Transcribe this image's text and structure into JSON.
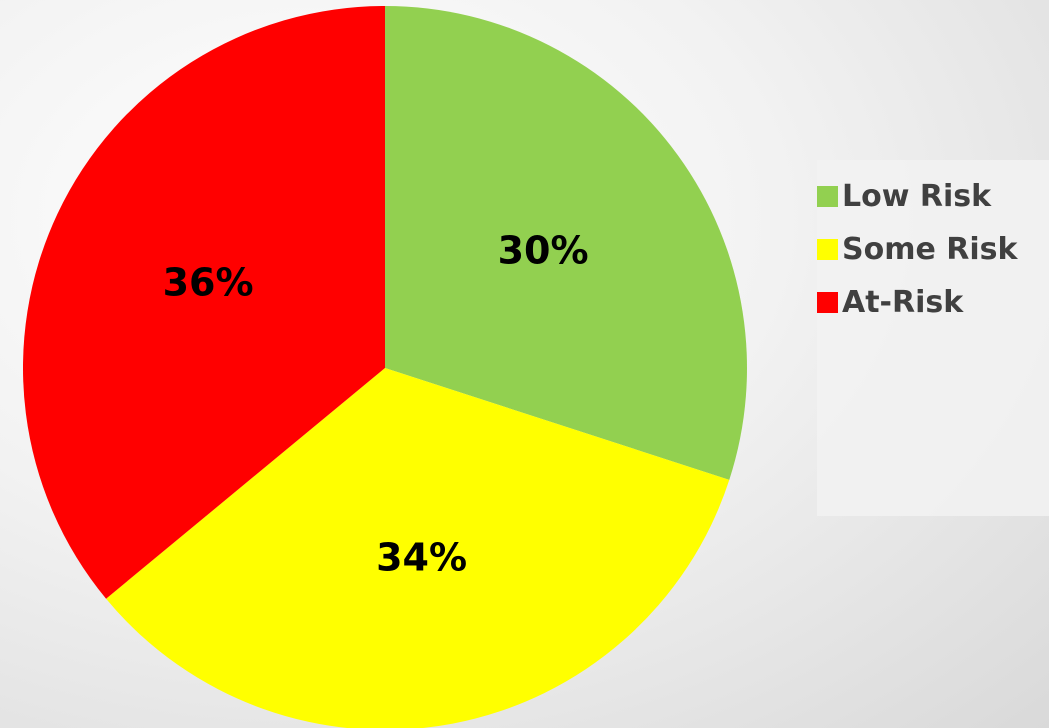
{
  "chart_data": {
    "type": "pie",
    "categories": [
      "Low Risk",
      "Some Risk",
      "At-Risk"
    ],
    "values": [
      30,
      34,
      36
    ],
    "data_labels": [
      "30%",
      "34%",
      "36%"
    ],
    "colors": [
      "#92D050",
      "#FFFF00",
      "#FF0000"
    ],
    "start_angle_deg": 0,
    "direction": "clockwise",
    "legend_position": "right"
  }
}
